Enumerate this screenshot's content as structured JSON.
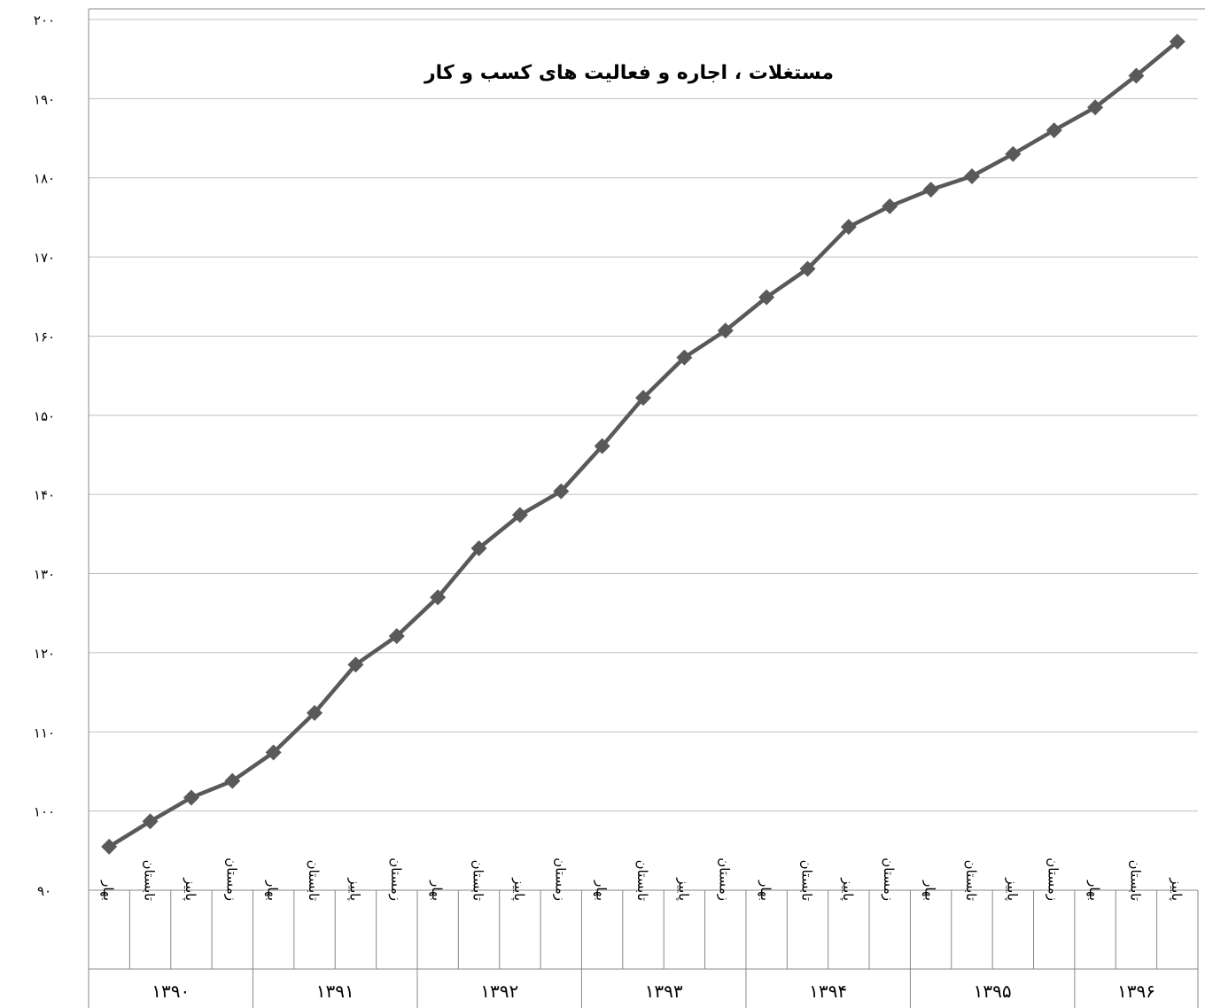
{
  "chart_data": {
    "type": "line",
    "title": "مستغلات ، اجاره و فعالیت های کسب و کار",
    "ylim": [
      90,
      200
    ],
    "yticks": [
      "۹۰",
      "۱۰۰",
      "۱۱۰",
      "۱۲۰",
      "۱۳۰",
      "۱۴۰",
      "۱۵۰",
      "۱۶۰",
      "۱۷۰",
      "۱۸۰",
      "۱۹۰",
      "۲۰۰"
    ],
    "grid": true,
    "legend": "none",
    "line_color": "#595959",
    "years": [
      {
        "label": "۱۳۹۰",
        "seasons": [
          "بهار",
          "تابستان",
          "پاییز",
          "زمستان"
        ]
      },
      {
        "label": "۱۳۹۱",
        "seasons": [
          "بهار",
          "تابستان",
          "پاییز",
          "زمستان"
        ]
      },
      {
        "label": "۱۳۹۲",
        "seasons": [
          "بهار",
          "تابستان",
          "پاییز",
          "زمستان"
        ]
      },
      {
        "label": "۱۳۹۳",
        "seasons": [
          "بهار",
          "تابستان",
          "پاییز",
          "زمستان"
        ]
      },
      {
        "label": "۱۳۹۴",
        "seasons": [
          "بهار",
          "تابستان",
          "پاییز",
          "زمستان"
        ]
      },
      {
        "label": "۱۳۹۵",
        "seasons": [
          "بهار",
          "تابستان",
          "پاییز",
          "زمستان"
        ]
      },
      {
        "label": "۱۳۹۶",
        "seasons": [
          "بهار",
          "تابستان",
          "پاییز"
        ]
      }
    ],
    "values": [
      95.5,
      98.7,
      101.7,
      103.8,
      107.4,
      112.4,
      118.5,
      122.1,
      127.0,
      133.2,
      137.4,
      140.4,
      146.1,
      152.2,
      157.3,
      160.7,
      164.9,
      168.5,
      173.8,
      176.4,
      178.5,
      180.2,
      183.0,
      186.0,
      188.9,
      192.9,
      197.2
    ]
  }
}
